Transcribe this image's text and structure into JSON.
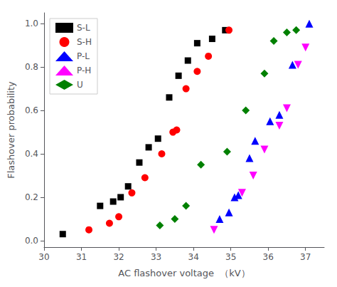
{
  "chart_data": {
    "type": "scatter",
    "xlabel": "AC flashover voltage  （kV）",
    "ylabel": "Flashover probability",
    "xlim": [
      30,
      37.5
    ],
    "ylim": [
      -0.03,
      1.05
    ],
    "xticks": [
      30,
      31,
      32,
      33,
      34,
      35,
      36,
      37
    ],
    "yticks": [
      {
        "value": 0.0,
        "label": "0.0"
      },
      0.2,
      0.4,
      0.6,
      0.8,
      {
        "value": 1.0,
        "label": "1.0"
      }
    ],
    "grid": false,
    "legend": "upper left",
    "series": [
      {
        "name": "S-L",
        "color": "#000000",
        "marker": "square",
        "x": [
          30.5,
          31.5,
          31.85,
          32.05,
          32.25,
          32.55,
          32.8,
          33.05,
          33.35,
          33.6,
          33.85,
          34.1,
          34.5,
          34.85
        ],
        "values": [
          0.03,
          0.16,
          0.18,
          0.2,
          0.25,
          0.36,
          0.43,
          0.47,
          0.66,
          0.76,
          0.83,
          0.91,
          0.93,
          0.97
        ]
      },
      {
        "name": "S-H",
        "color": "#ff0000",
        "marker": "circle",
        "x": [
          31.2,
          31.75,
          32.0,
          32.35,
          32.7,
          33.15,
          33.45,
          33.55,
          33.8,
          34.1,
          34.4,
          34.95
        ],
        "values": [
          0.05,
          0.08,
          0.11,
          0.22,
          0.29,
          0.4,
          0.5,
          0.51,
          0.7,
          0.78,
          0.85,
          0.97
        ]
      },
      {
        "name": "P-L",
        "color": "#0000ff",
        "marker": "triangle_up",
        "x": [
          34.7,
          34.95,
          35.1,
          35.2,
          35.5,
          35.65,
          36.05,
          36.3,
          36.65,
          37.1
        ],
        "values": [
          0.1,
          0.13,
          0.2,
          0.21,
          0.38,
          0.46,
          0.55,
          0.58,
          0.81,
          1.0
        ]
      },
      {
        "name": "P-H",
        "color": "#ff00ff",
        "marker": "triangle_down",
        "x": [
          34.55,
          35.3,
          35.6,
          35.9,
          36.3,
          36.5,
          36.8,
          37.0
        ],
        "values": [
          0.05,
          0.22,
          0.3,
          0.42,
          0.53,
          0.61,
          0.81,
          0.89
        ]
      },
      {
        "name": "U",
        "color": "#008000",
        "marker": "diamond",
        "x": [
          33.1,
          33.5,
          33.8,
          34.2,
          34.9,
          35.4,
          35.9,
          36.15,
          36.5,
          36.75
        ],
        "values": [
          0.07,
          0.1,
          0.16,
          0.35,
          0.41,
          0.6,
          0.77,
          0.92,
          0.96,
          0.97
        ]
      }
    ]
  }
}
